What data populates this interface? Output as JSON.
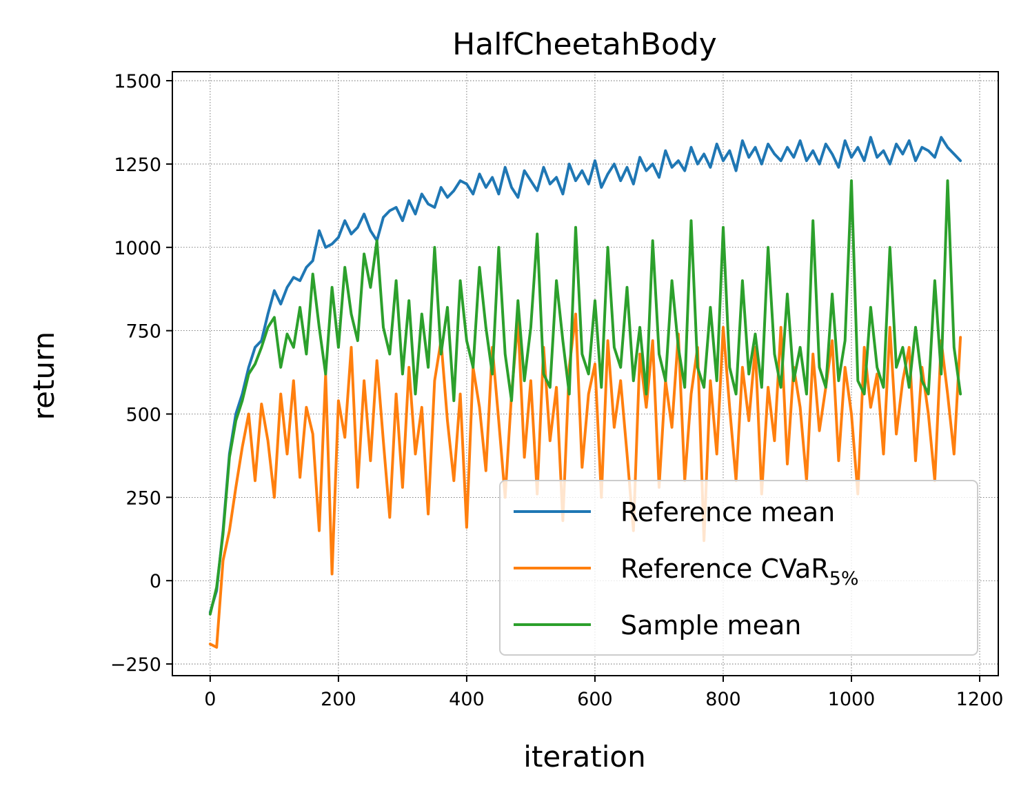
{
  "chart_data": {
    "type": "line",
    "title": "HalfCheetahBody",
    "xlabel": "iteration",
    "ylabel": "return",
    "xlim": [
      -59,
      1229
    ],
    "ylim": [
      -285,
      1527
    ],
    "xticks": [
      0,
      200,
      400,
      600,
      800,
      1000,
      1200
    ],
    "yticks": [
      -250,
      0,
      250,
      500,
      750,
      1000,
      1250,
      1500
    ],
    "xtick_labels": [
      "0",
      "200",
      "400",
      "600",
      "800",
      "1000",
      "1200"
    ],
    "ytick_labels": [
      "−250",
      "0",
      "250",
      "500",
      "750",
      "1000",
      "1250",
      "1500"
    ],
    "grid": true,
    "legend_position": "lower-right",
    "series": [
      {
        "name": "Reference mean",
        "legend_base": "Reference mean",
        "legend_sub": "",
        "color": "#1f77b4",
        "x": [
          0,
          10,
          20,
          30,
          40,
          50,
          60,
          70,
          80,
          90,
          100,
          110,
          120,
          130,
          140,
          150,
          160,
          170,
          180,
          190,
          200,
          210,
          220,
          230,
          240,
          250,
          260,
          270,
          280,
          290,
          300,
          310,
          320,
          330,
          340,
          350,
          360,
          370,
          380,
          390,
          400,
          410,
          420,
          430,
          440,
          450,
          460,
          470,
          480,
          490,
          500,
          510,
          520,
          530,
          540,
          550,
          560,
          570,
          580,
          590,
          600,
          610,
          620,
          630,
          640,
          650,
          660,
          670,
          680,
          690,
          700,
          710,
          720,
          730,
          740,
          750,
          760,
          770,
          780,
          790,
          800,
          810,
          820,
          830,
          840,
          850,
          860,
          870,
          880,
          890,
          900,
          910,
          920,
          930,
          940,
          950,
          960,
          970,
          980,
          990,
          1000,
          1010,
          1020,
          1030,
          1040,
          1050,
          1060,
          1070,
          1080,
          1090,
          1100,
          1110,
          1120,
          1130,
          1140,
          1150,
          1160,
          1170
        ],
        "y": [
          -95,
          -30,
          150,
          380,
          500,
          560,
          640,
          700,
          720,
          800,
          870,
          830,
          880,
          910,
          900,
          940,
          960,
          1050,
          1000,
          1010,
          1030,
          1080,
          1040,
          1060,
          1100,
          1050,
          1020,
          1090,
          1110,
          1120,
          1080,
          1140,
          1100,
          1160,
          1130,
          1120,
          1180,
          1150,
          1170,
          1200,
          1190,
          1160,
          1220,
          1180,
          1210,
          1160,
          1240,
          1180,
          1150,
          1230,
          1200,
          1170,
          1240,
          1190,
          1210,
          1160,
          1250,
          1200,
          1230,
          1190,
          1260,
          1180,
          1220,
          1250,
          1200,
          1240,
          1190,
          1270,
          1230,
          1250,
          1210,
          1290,
          1240,
          1260,
          1230,
          1300,
          1250,
          1280,
          1240,
          1310,
          1260,
          1290,
          1230,
          1320,
          1270,
          1300,
          1250,
          1310,
          1280,
          1260,
          1300,
          1270,
          1320,
          1260,
          1290,
          1250,
          1310,
          1280,
          1240,
          1320,
          1270,
          1300,
          1260,
          1330,
          1270,
          1290,
          1250,
          1310,
          1280,
          1320,
          1260,
          1300,
          1290,
          1270,
          1330,
          1300,
          1280,
          1260
        ]
      },
      {
        "name": "Reference CVaR5%",
        "legend_base": "Reference CVaR",
        "legend_sub": "5%",
        "color": "#ff7f0e",
        "x": [
          0,
          10,
          20,
          30,
          40,
          50,
          60,
          70,
          80,
          90,
          100,
          110,
          120,
          130,
          140,
          150,
          160,
          170,
          180,
          190,
          200,
          210,
          220,
          230,
          240,
          250,
          260,
          270,
          280,
          290,
          300,
          310,
          320,
          330,
          340,
          350,
          360,
          370,
          380,
          390,
          400,
          410,
          420,
          430,
          440,
          450,
          460,
          470,
          480,
          490,
          500,
          510,
          520,
          530,
          540,
          550,
          560,
          570,
          580,
          590,
          600,
          610,
          620,
          630,
          640,
          650,
          660,
          670,
          680,
          690,
          700,
          710,
          720,
          730,
          740,
          750,
          760,
          770,
          780,
          790,
          800,
          810,
          820,
          830,
          840,
          850,
          860,
          870,
          880,
          890,
          900,
          910,
          920,
          930,
          940,
          950,
          960,
          970,
          980,
          990,
          1000,
          1010,
          1020,
          1030,
          1040,
          1050,
          1060,
          1070,
          1080,
          1090,
          1100,
          1110,
          1120,
          1130,
          1140,
          1150,
          1160,
          1170
        ],
        "y": [
          -190,
          -200,
          60,
          150,
          280,
          400,
          500,
          300,
          530,
          420,
          250,
          560,
          380,
          600,
          310,
          520,
          440,
          150,
          620,
          20,
          540,
          430,
          700,
          280,
          600,
          360,
          660,
          420,
          190,
          560,
          280,
          640,
          380,
          520,
          200,
          600,
          720,
          480,
          300,
          560,
          160,
          640,
          520,
          330,
          700,
          480,
          250,
          560,
          780,
          370,
          600,
          260,
          700,
          420,
          580,
          180,
          640,
          800,
          340,
          560,
          650,
          250,
          720,
          460,
          600,
          380,
          150,
          680,
          520,
          720,
          280,
          600,
          460,
          740,
          300,
          560,
          700,
          120,
          600,
          380,
          760,
          520,
          300,
          640,
          480,
          700,
          260,
          580,
          420,
          760,
          350,
          640,
          520,
          300,
          680,
          450,
          580,
          720,
          360,
          640,
          500,
          260,
          700,
          520,
          620,
          380,
          760,
          440,
          600,
          700,
          360,
          640,
          500,
          300,
          720,
          560,
          380,
          730
        ]
      },
      {
        "name": "Sample mean",
        "legend_base": "Sample mean",
        "legend_sub": "",
        "color": "#2ca02c",
        "x": [
          0,
          10,
          20,
          30,
          40,
          50,
          60,
          70,
          80,
          90,
          100,
          110,
          120,
          130,
          140,
          150,
          160,
          170,
          180,
          190,
          200,
          210,
          220,
          230,
          240,
          250,
          260,
          270,
          280,
          290,
          300,
          310,
          320,
          330,
          340,
          350,
          360,
          370,
          380,
          390,
          400,
          410,
          420,
          430,
          440,
          450,
          460,
          470,
          480,
          490,
          500,
          510,
          520,
          530,
          540,
          550,
          560,
          570,
          580,
          590,
          600,
          610,
          620,
          630,
          640,
          650,
          660,
          670,
          680,
          690,
          700,
          710,
          720,
          730,
          740,
          750,
          760,
          770,
          780,
          790,
          800,
          810,
          820,
          830,
          840,
          850,
          860,
          870,
          880,
          890,
          900,
          910,
          920,
          930,
          940,
          950,
          960,
          970,
          980,
          990,
          1000,
          1010,
          1020,
          1030,
          1040,
          1050,
          1060,
          1070,
          1080,
          1090,
          1100,
          1110,
          1120,
          1130,
          1140,
          1150,
          1160,
          1170
        ],
        "y": [
          -100,
          -20,
          140,
          370,
          480,
          540,
          620,
          650,
          700,
          760,
          790,
          640,
          740,
          700,
          820,
          680,
          920,
          760,
          620,
          880,
          700,
          940,
          800,
          720,
          980,
          880,
          1020,
          760,
          680,
          900,
          620,
          840,
          560,
          800,
          640,
          1000,
          680,
          820,
          540,
          900,
          720,
          640,
          940,
          760,
          620,
          1000,
          680,
          540,
          840,
          600,
          760,
          1040,
          620,
          580,
          900,
          720,
          560,
          1060,
          680,
          620,
          840,
          580,
          1000,
          700,
          640,
          880,
          600,
          760,
          560,
          1020,
          680,
          600,
          900,
          700,
          580,
          1080,
          640,
          580,
          820,
          600,
          1060,
          640,
          560,
          900,
          620,
          740,
          580,
          1000,
          680,
          580,
          860,
          600,
          700,
          560,
          1080,
          640,
          580,
          860,
          600,
          720,
          1200,
          600,
          560,
          820,
          640,
          580,
          1000,
          640,
          700,
          580,
          760,
          600,
          560,
          900,
          620,
          1200,
          700,
          560
        ]
      }
    ]
  }
}
